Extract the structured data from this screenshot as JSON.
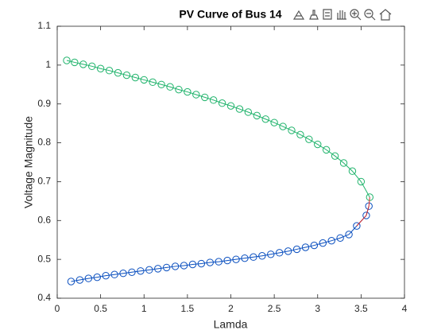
{
  "chart_data": {
    "type": "line",
    "title": "PV Curve of Bus 14",
    "xlabel": "Lamda",
    "ylabel": "Voltage Magnitude",
    "xlim": [
      0,
      4
    ],
    "xticks": [
      0,
      0.5,
      1,
      1.5,
      2,
      2.5,
      3,
      3.5,
      4
    ],
    "ylim": [
      0.4,
      1.1
    ],
    "yticks": [
      0.4,
      0.5,
      0.6,
      0.7,
      0.8,
      0.9,
      1,
      1.1
    ],
    "grid": false,
    "series": [
      {
        "color": "#1fb36b",
        "marker": "o",
        "x": [
          0.11,
          0.2,
          0.3,
          0.4,
          0.5,
          0.6,
          0.7,
          0.8,
          0.9,
          1.0,
          1.1,
          1.2,
          1.3,
          1.4,
          1.5,
          1.6,
          1.7,
          1.8,
          1.9,
          2.0,
          2.1,
          2.2,
          2.3,
          2.4,
          2.5,
          2.6,
          2.7,
          2.8,
          2.9,
          3.0,
          3.1,
          3.2,
          3.3,
          3.4,
          3.5,
          3.6
        ],
        "values": [
          1.012,
          1.007,
          1.002,
          0.997,
          0.991,
          0.986,
          0.98,
          0.974,
          0.968,
          0.962,
          0.956,
          0.95,
          0.944,
          0.937,
          0.931,
          0.924,
          0.917,
          0.91,
          0.902,
          0.895,
          0.887,
          0.879,
          0.87,
          0.861,
          0.852,
          0.842,
          0.832,
          0.821,
          0.809,
          0.796,
          0.782,
          0.766,
          0.748,
          0.727,
          0.7,
          0.66
        ]
      },
      {
        "color": "#0a4fbf",
        "marker": "o",
        "x": [
          0.16,
          0.26,
          0.36,
          0.46,
          0.56,
          0.66,
          0.76,
          0.86,
          0.96,
          1.06,
          1.16,
          1.26,
          1.36,
          1.46,
          1.56,
          1.66,
          1.76,
          1.86,
          1.96,
          2.06,
          2.16,
          2.26,
          2.36,
          2.46,
          2.56,
          2.66,
          2.76,
          2.86,
          2.96,
          3.06,
          3.16,
          3.26,
          3.36,
          3.45,
          3.56,
          3.59
        ],
        "values": [
          0.443,
          0.447,
          0.451,
          0.454,
          0.458,
          0.461,
          0.464,
          0.467,
          0.47,
          0.473,
          0.476,
          0.479,
          0.482,
          0.484,
          0.487,
          0.489,
          0.492,
          0.494,
          0.497,
          0.5,
          0.503,
          0.506,
          0.509,
          0.513,
          0.517,
          0.521,
          0.526,
          0.531,
          0.536,
          0.542,
          0.548,
          0.555,
          0.564,
          0.586,
          0.613,
          0.637
        ]
      },
      {
        "color": "#d62728",
        "marker": "none",
        "x": [
          3.45,
          3.56,
          3.59,
          3.6
        ],
        "values": [
          0.586,
          0.613,
          0.637,
          0.66
        ]
      }
    ]
  }
}
